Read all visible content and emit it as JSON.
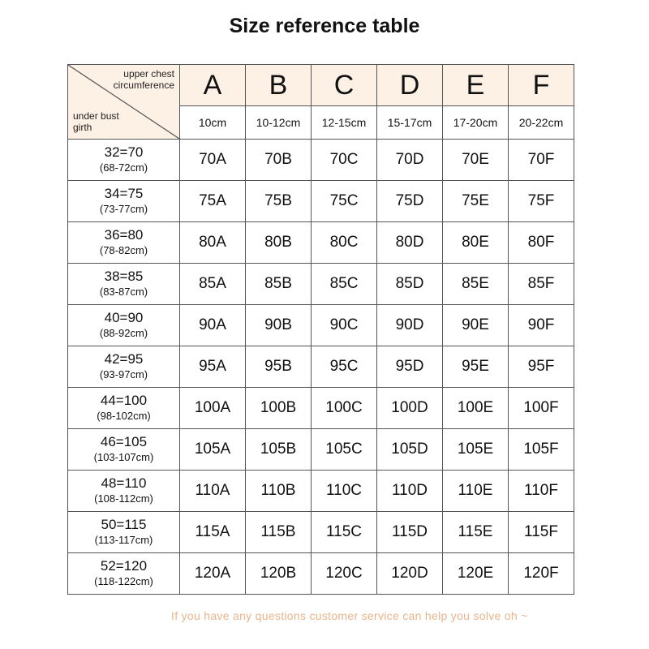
{
  "title": "Size reference table",
  "header": {
    "upper_label": "upper chest circumference",
    "under_label": "under bust girth",
    "cups": [
      {
        "letter": "A",
        "range": "10cm"
      },
      {
        "letter": "B",
        "range": "10-12cm"
      },
      {
        "letter": "C",
        "range": "12-15cm"
      },
      {
        "letter": "D",
        "range": "15-17cm"
      },
      {
        "letter": "E",
        "range": "17-20cm"
      },
      {
        "letter": "F",
        "range": "20-22cm"
      }
    ]
  },
  "rows": [
    {
      "size": "32=70",
      "range": "(68-72cm)",
      "cells": [
        "70A",
        "70B",
        "70C",
        "70D",
        "70E",
        "70F"
      ]
    },
    {
      "size": "34=75",
      "range": "(73-77cm)",
      "cells": [
        "75A",
        "75B",
        "75C",
        "75D",
        "75E",
        "75F"
      ]
    },
    {
      "size": "36=80",
      "range": "(78-82cm)",
      "cells": [
        "80A",
        "80B",
        "80C",
        "80D",
        "80E",
        "80F"
      ]
    },
    {
      "size": "38=85",
      "range": "(83-87cm)",
      "cells": [
        "85A",
        "85B",
        "85C",
        "85D",
        "85E",
        "85F"
      ]
    },
    {
      "size": "40=90",
      "range": "(88-92cm)",
      "cells": [
        "90A",
        "90B",
        "90C",
        "90D",
        "90E",
        "90F"
      ]
    },
    {
      "size": "42=95",
      "range": "(93-97cm)",
      "cells": [
        "95A",
        "95B",
        "95C",
        "95D",
        "95E",
        "95F"
      ]
    },
    {
      "size": "44=100",
      "range": "(98-102cm)",
      "cells": [
        "100A",
        "100B",
        "100C",
        "100D",
        "100E",
        "100F"
      ]
    },
    {
      "size": "46=105",
      "range": "(103-107cm)",
      "cells": [
        "105A",
        "105B",
        "105C",
        "105D",
        "105E",
        "105F"
      ]
    },
    {
      "size": "48=110",
      "range": "(108-112cm)",
      "cells": [
        "110A",
        "110B",
        "110C",
        "110D",
        "110E",
        "110F"
      ]
    },
    {
      "size": "50=115",
      "range": "(113-117cm)",
      "cells": [
        "115A",
        "115B",
        "115C",
        "115D",
        "115E",
        "115F"
      ]
    },
    {
      "size": "52=120",
      "range": "(118-122cm)",
      "cells": [
        "120A",
        "120B",
        "120C",
        "120D",
        "120E",
        "120F"
      ]
    }
  ],
  "footer": "If you have any questions customer service can help you solve oh ~",
  "colors": {
    "header_bg": "#fdf0e4",
    "footer_text": "#e8b48c"
  }
}
